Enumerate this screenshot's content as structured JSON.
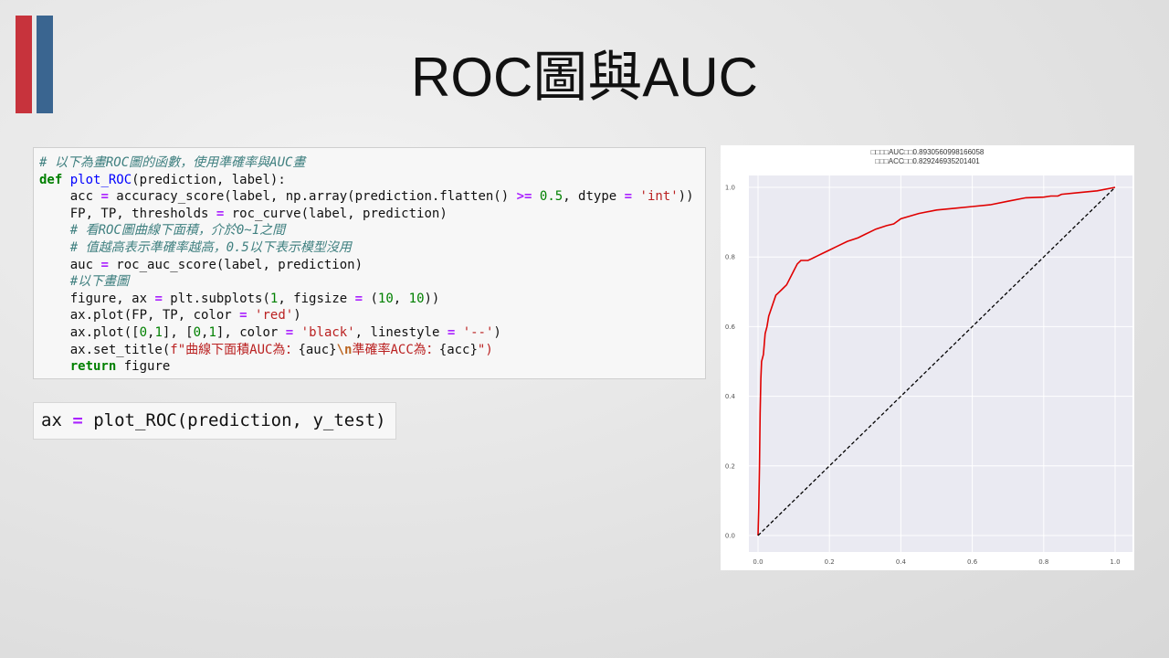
{
  "slide": {
    "title": "ROC圖與AUC",
    "accent_colors": [
      "#c7333c",
      "#3a6590"
    ]
  },
  "code_cell_1": {
    "lines": [
      [
        {
          "t": "# 以下為畫ROC圖的函數，使用準確率與AUC畫",
          "c": "comment"
        }
      ],
      [
        {
          "t": "def",
          "c": "kw"
        },
        {
          "t": " "
        },
        {
          "t": "plot_ROC",
          "c": "fn"
        },
        {
          "t": "(prediction, label):"
        }
      ],
      [
        {
          "t": "    acc "
        },
        {
          "t": "=",
          "c": "op"
        },
        {
          "t": " accuracy_score(label, np.array(prediction.flatten() "
        },
        {
          "t": ">=",
          "c": "op"
        },
        {
          "t": " "
        },
        {
          "t": "0.5",
          "c": "num"
        },
        {
          "t": ", dtype "
        },
        {
          "t": "=",
          "c": "op"
        },
        {
          "t": " "
        },
        {
          "t": "'int'",
          "c": "str"
        },
        {
          "t": "))"
        }
      ],
      [
        {
          "t": "    FP, TP, thresholds "
        },
        {
          "t": "=",
          "c": "op"
        },
        {
          "t": " roc_curve(label, prediction)"
        }
      ],
      [
        {
          "t": "    "
        },
        {
          "t": "# 看ROC圖曲線下面積，介於0~1之間",
          "c": "comment"
        }
      ],
      [
        {
          "t": "    "
        },
        {
          "t": "# 值越高表示準確率越高，0.5以下表示模型沒用",
          "c": "comment"
        }
      ],
      [
        {
          "t": "    auc "
        },
        {
          "t": "=",
          "c": "op"
        },
        {
          "t": " roc_auc_score(label, prediction)"
        }
      ],
      [
        {
          "t": "    "
        },
        {
          "t": "#以下畫圖",
          "c": "comment"
        }
      ],
      [
        {
          "t": "    figure, ax "
        },
        {
          "t": "=",
          "c": "op"
        },
        {
          "t": " plt.subplots("
        },
        {
          "t": "1",
          "c": "num"
        },
        {
          "t": ", figsize "
        },
        {
          "t": "=",
          "c": "op"
        },
        {
          "t": " ("
        },
        {
          "t": "10",
          "c": "num"
        },
        {
          "t": ", "
        },
        {
          "t": "10",
          "c": "num"
        },
        {
          "t": "))"
        }
      ],
      [
        {
          "t": "    ax.plot(FP, TP, color "
        },
        {
          "t": "=",
          "c": "op"
        },
        {
          "t": " "
        },
        {
          "t": "'red'",
          "c": "str"
        },
        {
          "t": ")"
        }
      ],
      [
        {
          "t": "    ax.plot(["
        },
        {
          "t": "0",
          "c": "num"
        },
        {
          "t": ","
        },
        {
          "t": "1",
          "c": "num"
        },
        {
          "t": "], ["
        },
        {
          "t": "0",
          "c": "num"
        },
        {
          "t": ","
        },
        {
          "t": "1",
          "c": "num"
        },
        {
          "t": "], color "
        },
        {
          "t": "=",
          "c": "op"
        },
        {
          "t": " "
        },
        {
          "t": "'black'",
          "c": "str"
        },
        {
          "t": ", linestyle "
        },
        {
          "t": "=",
          "c": "op"
        },
        {
          "t": " "
        },
        {
          "t": "'--'",
          "c": "str"
        },
        {
          "t": ")"
        }
      ],
      [
        {
          "t": "    ax.set_title("
        },
        {
          "t": "f\"曲線下面積AUC為：",
          "c": "str"
        },
        {
          "t": "{auc}"
        },
        {
          "t": "\\n",
          "c": "esc"
        },
        {
          "t": "準確率ACC為：",
          "c": "str"
        },
        {
          "t": "{acc}"
        },
        {
          "t": "\")",
          "c": "str"
        }
      ],
      [
        {
          "t": "    "
        },
        {
          "t": "return",
          "c": "kw"
        },
        {
          "t": " figure"
        }
      ]
    ]
  },
  "code_cell_2": {
    "parts": [
      {
        "t": "ax "
      },
      {
        "t": "=",
        "c": "op"
      },
      {
        "t": " plot_ROC(prediction, y_test)"
      }
    ]
  },
  "chart_data": {
    "type": "line",
    "title_lines": [
      "□□□□AUC□□0.8930560998166058",
      "□□□ACC□□0.829246935201401"
    ],
    "xlabel": "",
    "ylabel": "",
    "xlim": [
      0,
      1
    ],
    "ylim": [
      0,
      1
    ],
    "xticks": [
      "0.0",
      "0.2",
      "0.4",
      "0.6",
      "0.8",
      "1.0"
    ],
    "yticks": [
      "0.0",
      "0.2",
      "0.4",
      "0.6",
      "0.8",
      "1.0"
    ],
    "grid": true,
    "background": "#eaeaf2",
    "series": [
      {
        "color": "#e00000",
        "style": "solid",
        "x": [
          0,
          0.002,
          0.004,
          0.006,
          0.008,
          0.01,
          0.015,
          0.02,
          0.025,
          0.03,
          0.04,
          0.05,
          0.06,
          0.07,
          0.08,
          0.1,
          0.11,
          0.12,
          0.14,
          0.16,
          0.18,
          0.2,
          0.22,
          0.25,
          0.28,
          0.3,
          0.33,
          0.36,
          0.38,
          0.4,
          0.45,
          0.5,
          0.55,
          0.6,
          0.65,
          0.7,
          0.75,
          0.8,
          0.82,
          0.84,
          0.85,
          0.9,
          0.95,
          1.0
        ],
        "y": [
          0,
          0.08,
          0.2,
          0.35,
          0.45,
          0.5,
          0.52,
          0.58,
          0.6,
          0.63,
          0.66,
          0.69,
          0.7,
          0.71,
          0.72,
          0.76,
          0.78,
          0.79,
          0.79,
          0.8,
          0.81,
          0.82,
          0.83,
          0.845,
          0.855,
          0.865,
          0.88,
          0.89,
          0.895,
          0.91,
          0.925,
          0.935,
          0.94,
          0.945,
          0.95,
          0.96,
          0.97,
          0.972,
          0.975,
          0.975,
          0.98,
          0.985,
          0.99,
          1.0
        ]
      },
      {
        "color": "#000000",
        "style": "dashed",
        "x": [
          0,
          1
        ],
        "y": [
          0,
          1
        ]
      }
    ]
  }
}
